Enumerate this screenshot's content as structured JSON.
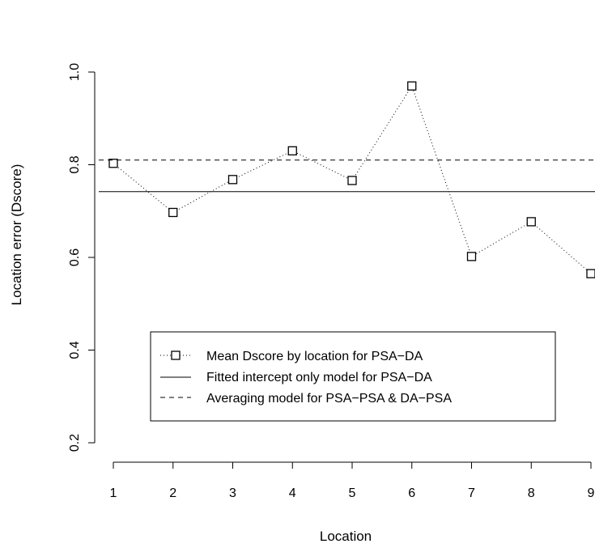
{
  "chart_data": {
    "type": "line",
    "xlabel": "Location",
    "ylabel": "Location error (Dscore)",
    "xlim": [
      1,
      9
    ],
    "ylim": [
      0.2,
      1.1
    ],
    "x_ticks": [
      1,
      2,
      3,
      4,
      5,
      6,
      7,
      8,
      9
    ],
    "y_ticks": [
      0.2,
      0.4,
      0.6,
      0.8,
      1.0
    ],
    "y_tick_labels": [
      "0.2",
      "0.4",
      "0.6",
      "0.8",
      "1.0"
    ],
    "legend_placement": "bottom-center",
    "series": [
      {
        "name": "Mean Dscore by location for PSA−DA",
        "style": "dotted-with-open-squares",
        "x": [
          1,
          2,
          3,
          4,
          5,
          6,
          7,
          8,
          9
        ],
        "values": [
          0.803,
          0.697,
          0.768,
          0.83,
          0.766,
          0.97,
          0.602,
          0.677,
          0.565
        ]
      },
      {
        "name": "Fitted intercept only model for PSA−DA",
        "style": "solid",
        "x": [
          1,
          9
        ],
        "values": [
          0.742,
          0.742
        ]
      },
      {
        "name": "Averaging model for PSA−PSA & DA−PSA",
        "style": "dashed",
        "x": [
          1,
          9
        ],
        "values": [
          0.81,
          0.81
        ]
      }
    ]
  }
}
